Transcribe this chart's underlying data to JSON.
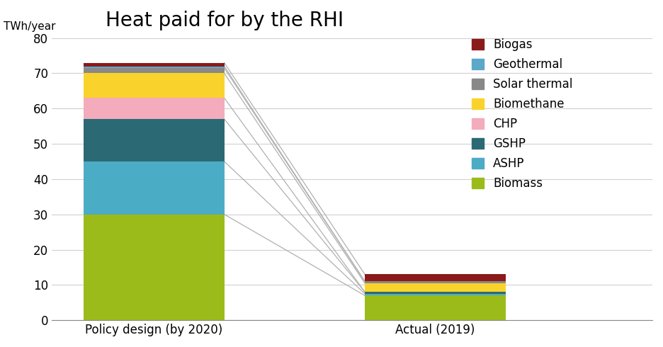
{
  "title": "Heat paid for by the RHI",
  "ylabel_text": "TWh/year",
  "ylim": [
    0,
    80
  ],
  "yticks": [
    0,
    10,
    20,
    30,
    40,
    50,
    60,
    70,
    80
  ],
  "categories": [
    "Policy design (by 2020)",
    "Actual (2019)"
  ],
  "series": [
    {
      "label": "Biomass",
      "color": "#9BBB1A",
      "values": [
        30.0,
        7.0
      ]
    },
    {
      "label": "ASHP",
      "color": "#4BACC6",
      "values": [
        15.0,
        0.5
      ]
    },
    {
      "label": "GSHP",
      "color": "#2B6A75",
      "values": [
        12.0,
        0.5
      ]
    },
    {
      "label": "CHP",
      "color": "#F4ABBB",
      "values": [
        6.0,
        0.0
      ]
    },
    {
      "label": "Biomethane",
      "color": "#F9D32B",
      "values": [
        7.0,
        2.5
      ]
    },
    {
      "label": "Solar thermal",
      "color": "#888888",
      "values": [
        1.5,
        0.5
      ]
    },
    {
      "label": "Geothermal",
      "color": "#5BA8C8",
      "values": [
        0.5,
        0.0
      ]
    },
    {
      "label": "Biogas",
      "color": "#8B1A1A",
      "values": [
        1.0,
        2.0
      ]
    }
  ],
  "background_color": "#ffffff",
  "grid_color": "#d0d0d0",
  "bar_width": 0.55,
  "x_positions": [
    0.25,
    1.35
  ],
  "xlim": [
    -0.15,
    2.2
  ],
  "connector_color": "#b0b0b0",
  "title_fontsize": 20,
  "axis_label_fontsize": 11,
  "tick_fontsize": 12,
  "legend_fontsize": 12
}
